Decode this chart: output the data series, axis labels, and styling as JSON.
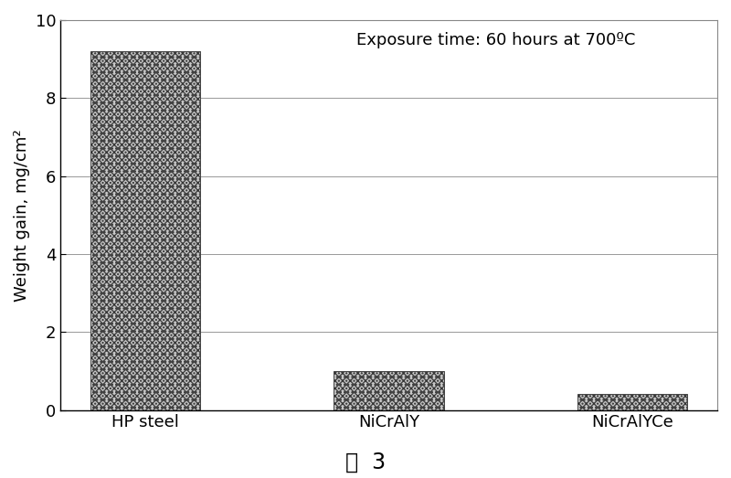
{
  "categories": [
    "HP steel",
    "NiCrAlY",
    "NiCrAlYCe"
  ],
  "values": [
    9.2,
    1.0,
    0.4
  ],
  "bar_color": "#b0b0b0",
  "ylim": [
    0,
    10
  ],
  "yticks": [
    0,
    2,
    4,
    6,
    8,
    10
  ],
  "ylabel": "Weight gain, mg/cm²",
  "annotation": "Exposure time: 60 hours at 700ºC",
  "annotation_fontsize": 13,
  "caption": "图  3",
  "caption_fontsize": 17,
  "ylabel_fontsize": 13,
  "xtick_fontsize": 13,
  "ytick_fontsize": 13,
  "bar_width": 0.45,
  "background_color": "#ffffff",
  "grid_color": "#888888",
  "grid_linestyle": "-",
  "grid_linewidth": 0.6
}
